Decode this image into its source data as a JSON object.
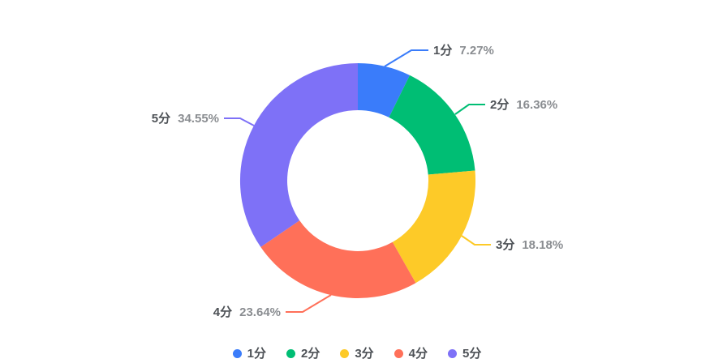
{
  "chart_data": {
    "type": "pie",
    "variant": "donut",
    "title": "",
    "start_angle": "top",
    "direction": "clockwise",
    "categories": [
      "1分",
      "2分",
      "3分",
      "4分",
      "5分"
    ],
    "values": [
      7.27,
      16.36,
      18.18,
      23.64,
      34.55
    ],
    "label_format": "{name} {value}%",
    "slices": [
      {
        "name": "1分",
        "value": 7.27,
        "display": "7.27%",
        "color": "#3A7CFA"
      },
      {
        "name": "2分",
        "value": 16.36,
        "display": "16.36%",
        "color": "#00BE74"
      },
      {
        "name": "3分",
        "value": 18.18,
        "display": "18.18%",
        "color": "#FDCA28"
      },
      {
        "name": "4分",
        "value": 23.64,
        "display": "23.64%",
        "color": "#FF7059"
      },
      {
        "name": "5分",
        "value": 34.55,
        "display": "34.55%",
        "color": "#7E71F7"
      }
    ],
    "legend": {
      "position": "bottom",
      "entries": [
        "1分",
        "2分",
        "3分",
        "4分",
        "5分"
      ]
    }
  },
  "styles": {
    "name_color": "#4D5156",
    "value_color": "#8A8D91",
    "legend_text_color": "#4D5156",
    "background": "#FFFFFF"
  }
}
